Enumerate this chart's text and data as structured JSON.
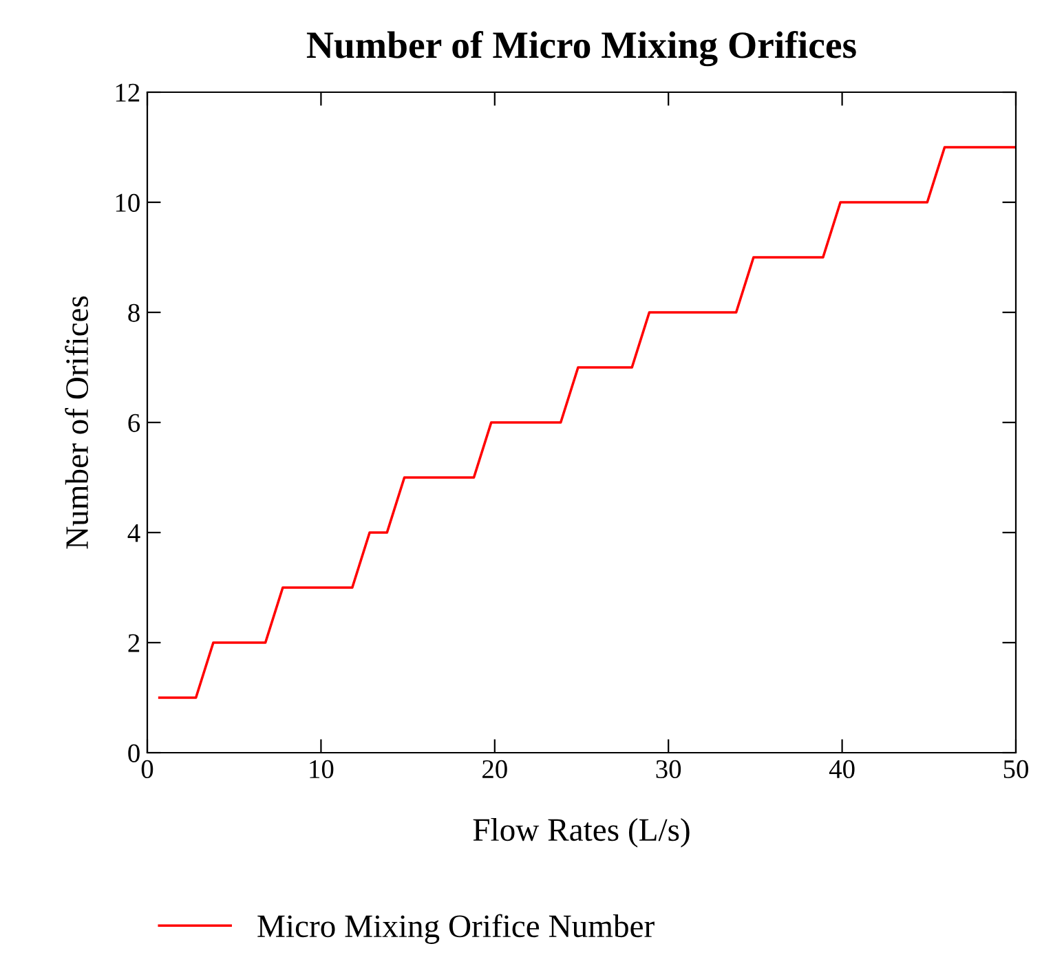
{
  "chart_data": {
    "type": "line",
    "title": "Number of Micro Mixing Orifices",
    "xlabel": "Flow Rates (L/s)",
    "ylabel": "Number of Orifices",
    "x": [
      0.7,
      2.8,
      3.8,
      6.8,
      7.8,
      11.8,
      12.8,
      13.8,
      14.8,
      18.8,
      19.8,
      23.8,
      24.8,
      27.9,
      28.9,
      33.9,
      34.9,
      38.9,
      39.9,
      44.9,
      45.9,
      50
    ],
    "series": [
      {
        "name": "Micro Mixing Orifice Number",
        "color": "#ff0000",
        "values": [
          1,
          1,
          2,
          2,
          3,
          3,
          4,
          4,
          5,
          5,
          6,
          6,
          7,
          7,
          8,
          8,
          9,
          9,
          10,
          10,
          11,
          11
        ]
      }
    ],
    "xlim": [
      0,
      50
    ],
    "xticks": [
      0,
      10,
      20,
      30,
      40,
      50
    ],
    "ylim": [
      0,
      12
    ],
    "yticks": [
      0,
      2,
      4,
      6,
      8,
      10,
      12
    ],
    "grid": false,
    "legend": "bottom",
    "marker": "none",
    "line_style": "solid"
  }
}
